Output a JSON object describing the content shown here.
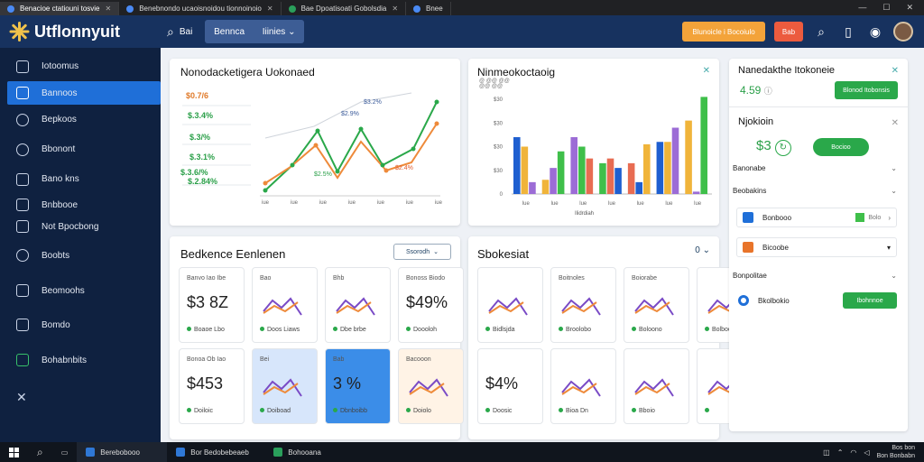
{
  "browser": {
    "tabs": [
      {
        "label": "Benacioe ctatiouni tosvie"
      },
      {
        "label": "Benebnondo ucaoisnoidou tionnoinoio"
      },
      {
        "label": "Bae Dpoatisoati Gobolsdia"
      },
      {
        "label": "Bnee"
      }
    ]
  },
  "app": {
    "title": "Utflonnyuit"
  },
  "topbar": {
    "search_label": "Bai",
    "pill_left": "Bennca",
    "pill_right": "Iiinies",
    "orange_button": "Blunoicle i Bocoiulo",
    "red_button": "Bab"
  },
  "sidebar": {
    "items": [
      {
        "label": "Iotoomus",
        "icon": "wave-icon"
      },
      {
        "label": "Bannoos",
        "icon": "folder-icon"
      },
      {
        "label": "Bepkoos",
        "icon": "chat-icon"
      },
      {
        "label": "Bbonont",
        "icon": "heart-icon"
      },
      {
        "label": "Bano kns",
        "icon": "grid-icon"
      },
      {
        "label": "Bnbbooe",
        "icon": "window-icon"
      },
      {
        "label": "Not Bpocbong",
        "icon": "window-icon"
      },
      {
        "label": "Boobts",
        "icon": "search-icon"
      },
      {
        "label": "Beomoohs",
        "icon": "doc-icon"
      },
      {
        "label": "Bomdo",
        "icon": "home-icon"
      },
      {
        "label": "Bohabnbits",
        "icon": "chart-icon"
      },
      {
        "label": "",
        "icon": "tools-icon"
      }
    ]
  },
  "card1": {
    "title": "Nonodacketigera Uokonaed",
    "values": [
      "$0.7/6",
      "$.3.4%",
      "$.3/%",
      "$.3.1%",
      "$.3.6/%",
      "$.2.84%"
    ],
    "annotations": [
      "$2.9%",
      "$3.2%",
      "$2.5%",
      "$2.4%"
    ],
    "xticks": [
      "iue",
      "iue",
      "iue",
      "iue",
      "iue",
      "iue",
      "iue"
    ]
  },
  "card2": {
    "title": "Ninmeokoctaoig",
    "legend": [
      "@ @@ @@",
      "@@ @@"
    ],
    "xlabel": "Ilidrdiah",
    "xticks": [
      "lue",
      "lue",
      "lue",
      "lue",
      "lue",
      "lue",
      "lue"
    ]
  },
  "chart_data": {
    "type": "bar",
    "title": "Ninmeokoctaoig",
    "xlabel": "Ilidrdiah",
    "categories": [
      "lue",
      "lue",
      "lue",
      "lue",
      "lue",
      "lue",
      "lue"
    ],
    "yticks": [
      "0",
      "$30",
      "$30",
      "$30",
      "$30"
    ],
    "ylim": [
      0,
      4
    ],
    "series": [
      {
        "values": [
          2.4,
          0.6,
          2.4,
          1.3,
          1.3,
          2.2,
          3.1
        ]
      },
      {
        "values": [
          2.0,
          1.1,
          2.0,
          1.5,
          0.5,
          2.2,
          0.1
        ]
      },
      {
        "values": [
          0.5,
          1.8,
          1.5,
          1.1,
          2.1,
          2.8,
          4.1
        ]
      }
    ],
    "colors": [
      "#1f5fd0",
      "#f0b43a",
      "#9c6cd6",
      "#3fbf4a",
      "#e86c52"
    ]
  },
  "card3": {
    "title": "Bedkence Eenlenen",
    "dropdown": "Ssorodh",
    "minis": [
      {
        "label": "Banvo Iao Ibe",
        "value": "$3 8Z",
        "sub": "Boaoe Lbo"
      },
      {
        "label": "Bao",
        "value": "",
        "sub": "Doos Liaws"
      },
      {
        "label": "Bhb",
        "value": "",
        "sub": "Dbe brbe"
      },
      {
        "label": "Bonoss Biodo",
        "value": "$49%",
        "sub": "Doooloh"
      },
      {
        "label": "Bonoa Ob Iao",
        "value": "$453",
        "sub": "Doiloic"
      },
      {
        "label": "Bei",
        "value": "",
        "sub": "Doiboad"
      },
      {
        "label": "Bab",
        "value": "3 %",
        "sub": "Dbnboibb"
      },
      {
        "label": "Bacooon",
        "value": "",
        "sub": "Doiolo"
      }
    ]
  },
  "card4": {
    "title": "Sbokesiat",
    "counter": "0",
    "minis": [
      {
        "label": "",
        "value": "",
        "sub": "Bidlsjda"
      },
      {
        "label": "Boitnoles",
        "value": "",
        "sub": "Broolobo"
      },
      {
        "label": "Boiorabe",
        "value": "",
        "sub": "Boloono"
      },
      {
        "label": "",
        "value": "",
        "sub": "Bolboo"
      },
      {
        "label": "",
        "value": "$4%",
        "sub": "Doosic"
      },
      {
        "label": "",
        "value": "",
        "sub": "Bioa Dn"
      },
      {
        "label": "",
        "value": "",
        "sub": "Bboio"
      },
      {
        "label": "",
        "value": "",
        "sub": ""
      }
    ]
  },
  "panel": {
    "title": "Nanedakthe Itokoneie",
    "value": "4.59",
    "green_button": "Blonod Itobonsis",
    "section2_title": "Njokioin",
    "section2_value": "$3",
    "section2_button": "Bocioo",
    "rows": [
      {
        "label": "Banonabe"
      },
      {
        "label": "Beobakins"
      },
      {
        "label": "Bonbooo",
        "detail": "Bolo"
      },
      {
        "label": "Bicoobe"
      },
      {
        "label": "Bonpolitae"
      },
      {
        "label": "Bkolbokio",
        "button": "Ibohnnoe"
      }
    ]
  },
  "taskbar": {
    "items": [
      "Berebobooo",
      "Bor Bedobebeaeb",
      "Bohooana"
    ],
    "time": "Bos bon",
    "date": "Bon Bonbabn"
  }
}
